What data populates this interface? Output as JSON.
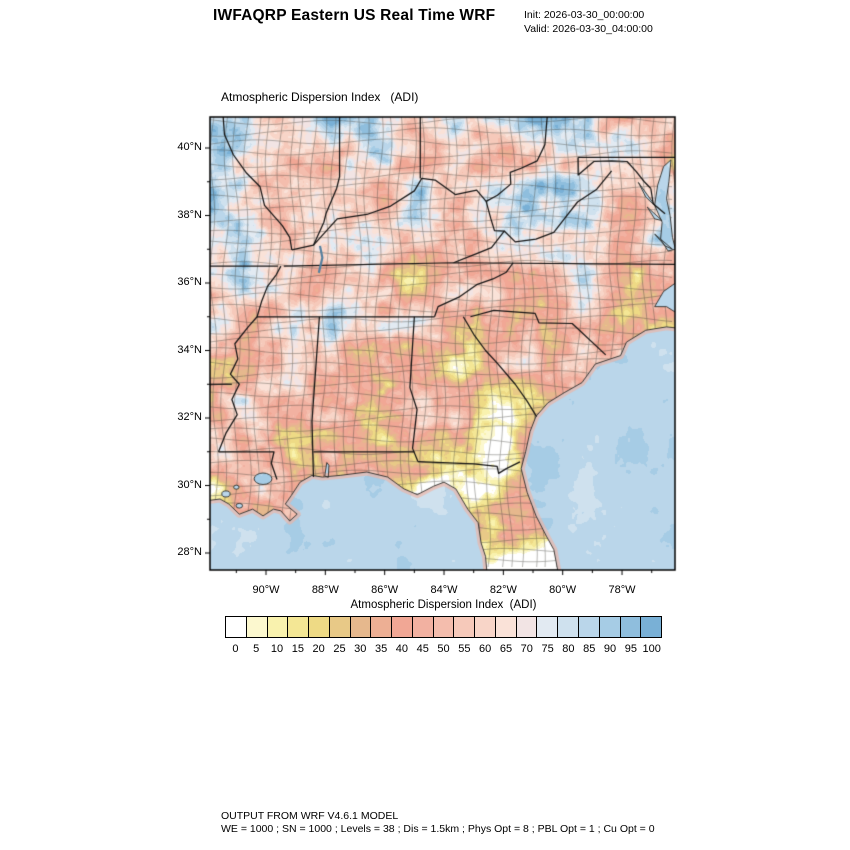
{
  "header": {
    "title": "IWFAQRP Eastern US Real Time WRF",
    "init": "Init: 2026-03-30_00:00:00",
    "valid": "Valid: 2026-03-30_04:00:00"
  },
  "map": {
    "title": "Atmospheric Dispersion Index   (ADI)"
  },
  "axes": {
    "lat": [
      {
        "label": "40°N",
        "value": 40
      },
      {
        "label": "38°N",
        "value": 38
      },
      {
        "label": "36°N",
        "value": 36
      },
      {
        "label": "34°N",
        "value": 34
      },
      {
        "label": "32°N",
        "value": 32
      },
      {
        "label": "30°N",
        "value": 30
      },
      {
        "label": "28°N",
        "value": 28
      }
    ],
    "lon": [
      {
        "label": "90°W",
        "value": 90
      },
      {
        "label": "88°W",
        "value": 88
      },
      {
        "label": "86°W",
        "value": 86
      },
      {
        "label": "84°W",
        "value": 84
      },
      {
        "label": "82°W",
        "value": 82
      },
      {
        "label": "80°W",
        "value": 80
      },
      {
        "label": "78°W",
        "value": 78
      }
    ]
  },
  "colorbar": {
    "title": "Atmospheric Dispersion Index  (ADI)",
    "tick_labels": [
      "0",
      "5",
      "10",
      "15",
      "20",
      "25",
      "30",
      "35",
      "40",
      "45",
      "50",
      "55",
      "60",
      "65",
      "70",
      "75",
      "80",
      "85",
      "90",
      "95",
      "100"
    ],
    "colors": [
      "#ffffff",
      "#fcf8cf",
      "#f9f2ae",
      "#f4e795",
      "#eeda85",
      "#e8c987",
      "#e6b88d",
      "#edaf94",
      "#f1a795",
      "#f2b1a1",
      "#f4bdad",
      "#f6c9ba",
      "#f8d5c8",
      "#fae2d8",
      "#f2e4e4",
      "#e2eaf2",
      "#cfe1ee",
      "#bad6ea",
      "#a6cce5",
      "#8fbedd",
      "#79b0d6"
    ]
  },
  "footer": {
    "line1": "OUTPUT FROM WRF V4.6.1 MODEL",
    "line2": "WE = 1000 ; SN = 1000 ; Levels = 38 ; Dis = 1.5km ; Phys Opt = 8 ; PBL Opt = 1 ; Cu Opt = 0"
  },
  "chart_data": {
    "type": "heatmap",
    "title": "Atmospheric Dispersion Index (ADI)",
    "region": "Eastern US",
    "x_axis": {
      "ticks_deg_west": [
        90,
        88,
        86,
        84,
        82,
        80,
        78
      ],
      "range_deg_west": [
        91.9,
        76.2
      ]
    },
    "y_axis": {
      "ticks_deg_north": [
        40,
        38,
        36,
        34,
        32,
        30,
        28
      ],
      "range_deg_north": [
        27.5,
        40.9
      ]
    },
    "legend": {
      "label": "ADI",
      "ticks": [
        0,
        5,
        10,
        15,
        20,
        25,
        30,
        35,
        40,
        45,
        50,
        55,
        60,
        65,
        70,
        75,
        80,
        85,
        90,
        95,
        100
      ]
    }
  }
}
